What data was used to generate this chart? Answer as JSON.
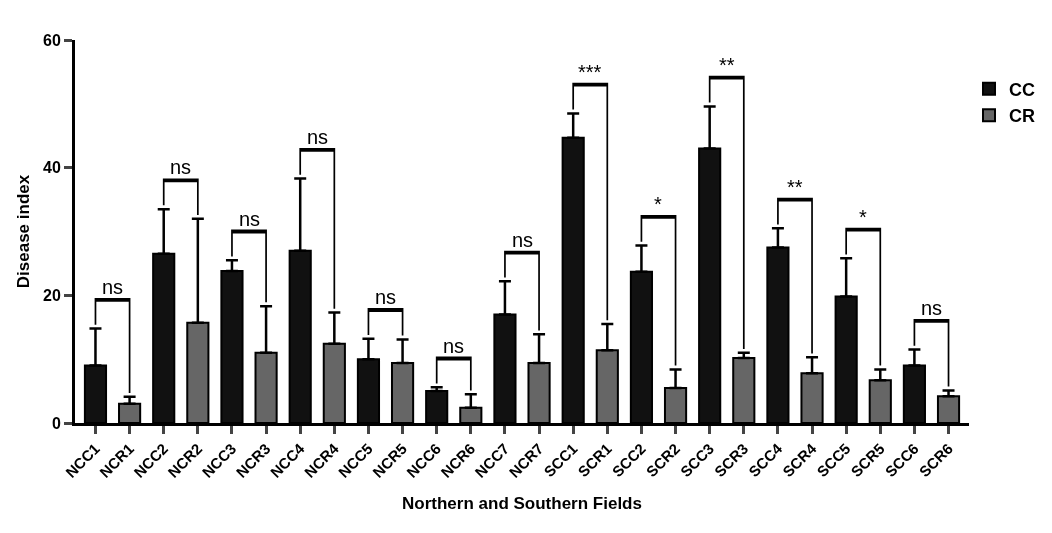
{
  "chart_data": {
    "type": "bar",
    "xlabel": "Northern and Southern Fields",
    "ylabel": "Disease index",
    "categories": [
      "NCC1",
      "NCR1",
      "NCC2",
      "NCR2",
      "NCC3",
      "NCR3",
      "NCC4",
      "NCR4",
      "NCC5",
      "NCR5",
      "NCC6",
      "NCR6",
      "NCC7",
      "NCR7",
      "SCC1",
      "SCR1",
      "SCC2",
      "SCR2",
      "SCC3",
      "SCR3",
      "SCC4",
      "SCR4",
      "SCC5",
      "SCR5",
      "SCC6",
      "SCR6"
    ],
    "series": [
      {
        "name": "CC",
        "color": "#111111",
        "values": [
          9,
          null,
          26.5,
          null,
          23.8,
          null,
          27,
          null,
          10,
          null,
          5,
          null,
          17,
          null,
          44.7,
          null,
          23.7,
          null,
          43,
          null,
          27.5,
          null,
          19.8,
          null,
          9,
          null
        ],
        "errors": [
          [
            9,
            14.8
          ],
          null,
          [
            26.5,
            33.5
          ],
          null,
          [
            23.8,
            25.5
          ],
          null,
          [
            27,
            38.3
          ],
          null,
          [
            10,
            13.2
          ],
          null,
          [
            5,
            5.6
          ],
          null,
          [
            17,
            22.2
          ],
          null,
          [
            44.7,
            48.5
          ],
          null,
          [
            23.7,
            27.8
          ],
          null,
          [
            43,
            49.6
          ],
          null,
          [
            27.5,
            30.5
          ],
          null,
          [
            19.8,
            25.8
          ],
          null,
          [
            9,
            11.5
          ],
          null
        ]
      },
      {
        "name": "CR",
        "color": "#666666",
        "values": [
          null,
          3,
          null,
          15.7,
          null,
          11,
          null,
          12.4,
          null,
          9.4,
          null,
          2.4,
          null,
          9.4,
          null,
          11.4,
          null,
          5.5,
          null,
          10.2,
          null,
          7.8,
          null,
          6.7,
          null,
          4.2
        ],
        "errors": [
          null,
          [
            3,
            4.1
          ],
          null,
          [
            15.7,
            32
          ],
          null,
          [
            11,
            18.3
          ],
          null,
          [
            12.4,
            17.3
          ],
          null,
          [
            9.4,
            13.1
          ],
          null,
          [
            2.4,
            4.5
          ],
          null,
          [
            9.4,
            13.9
          ],
          null,
          [
            11.4,
            15.5
          ],
          null,
          [
            5.5,
            8.4
          ],
          null,
          [
            10.2,
            11
          ],
          null,
          [
            7.8,
            10.3
          ],
          null,
          [
            6.7,
            8.4
          ],
          null,
          [
            4.2,
            5.1
          ]
        ]
      }
    ],
    "annotations": [
      "ns",
      "ns",
      "ns",
      "ns",
      "ns",
      "ns",
      "ns",
      "***",
      "*",
      "**",
      "**",
      "*",
      "ns"
    ],
    "ylim": [
      0,
      60
    ],
    "yticks": [
      0,
      20,
      40,
      60
    ],
    "grid": false,
    "legend": "top right"
  }
}
